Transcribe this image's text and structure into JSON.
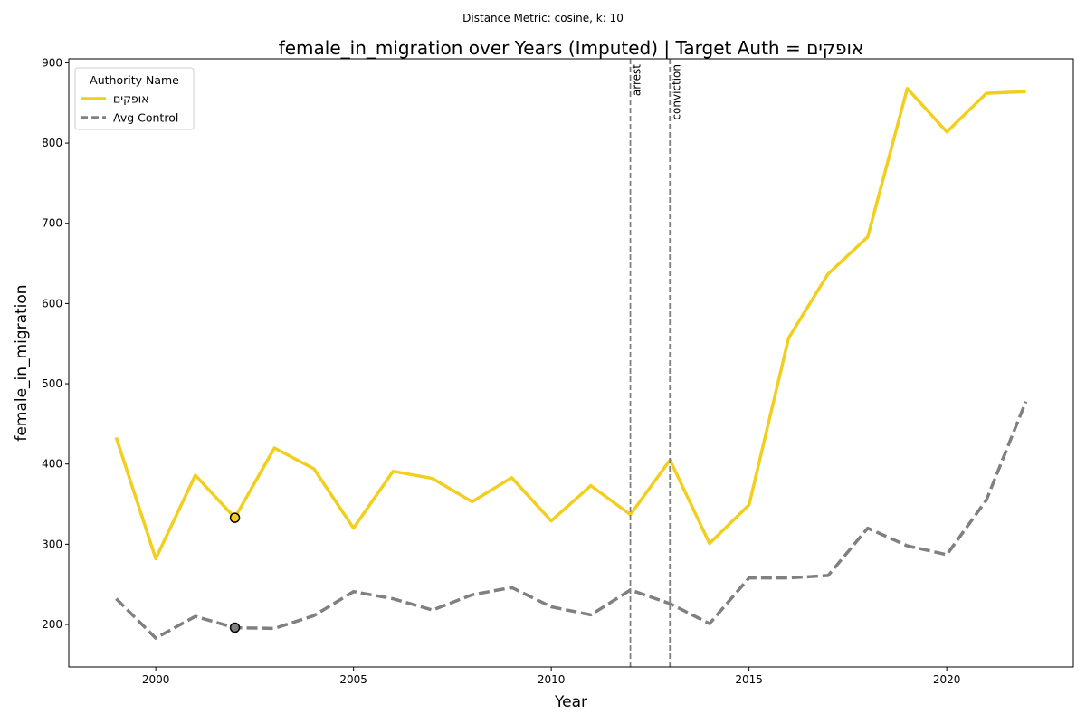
{
  "suptitle": "Distance Metric: cosine, k: 10",
  "chart_data": {
    "type": "line",
    "title": "female_in_migration over Years (Imputed) | Target Auth = אופקים",
    "xlabel": "Year",
    "ylabel": "female_in_migration",
    "xlim": [
      1997.8,
      2023.2
    ],
    "ylim": [
      147,
      905
    ],
    "xticks": [
      2000,
      2005,
      2010,
      2015,
      2020
    ],
    "yticks": [
      200,
      300,
      400,
      500,
      600,
      700,
      800,
      900
    ],
    "grid": false,
    "legend": {
      "title": "Authority Name",
      "placement": "top-left"
    },
    "x": [
      1999,
      2000,
      2001,
      2002,
      2003,
      2004,
      2005,
      2006,
      2007,
      2008,
      2009,
      2010,
      2011,
      2012,
      2013,
      2014,
      2015,
      2016,
      2017,
      2018,
      2019,
      2020,
      2021,
      2022
    ],
    "series": [
      {
        "name": "אופקים",
        "color": "#f2cf1d",
        "style": "solid",
        "values": [
          433,
          282,
          386,
          333,
          420,
          394,
          320,
          391,
          382,
          353,
          383,
          329,
          373,
          337,
          405,
          301,
          349,
          557,
          637,
          683,
          868,
          814,
          862,
          864
        ]
      },
      {
        "name": "Avg Control",
        "color": "#808080",
        "style": "dashed",
        "values": [
          232,
          183,
          210,
          196,
          195,
          211,
          241,
          232,
          218,
          237,
          246,
          222,
          212,
          243,
          226,
          201,
          258,
          258,
          261,
          320,
          298,
          287,
          355,
          478
        ]
      }
    ],
    "markers": [
      {
        "x": 2002,
        "y": 333,
        "fill": "#f2cf1d"
      },
      {
        "x": 2002,
        "y": 196,
        "fill": "#808080"
      }
    ],
    "events": [
      {
        "x": 2012,
        "label": "arrest"
      },
      {
        "x": 2013,
        "label": "conviction"
      }
    ]
  }
}
